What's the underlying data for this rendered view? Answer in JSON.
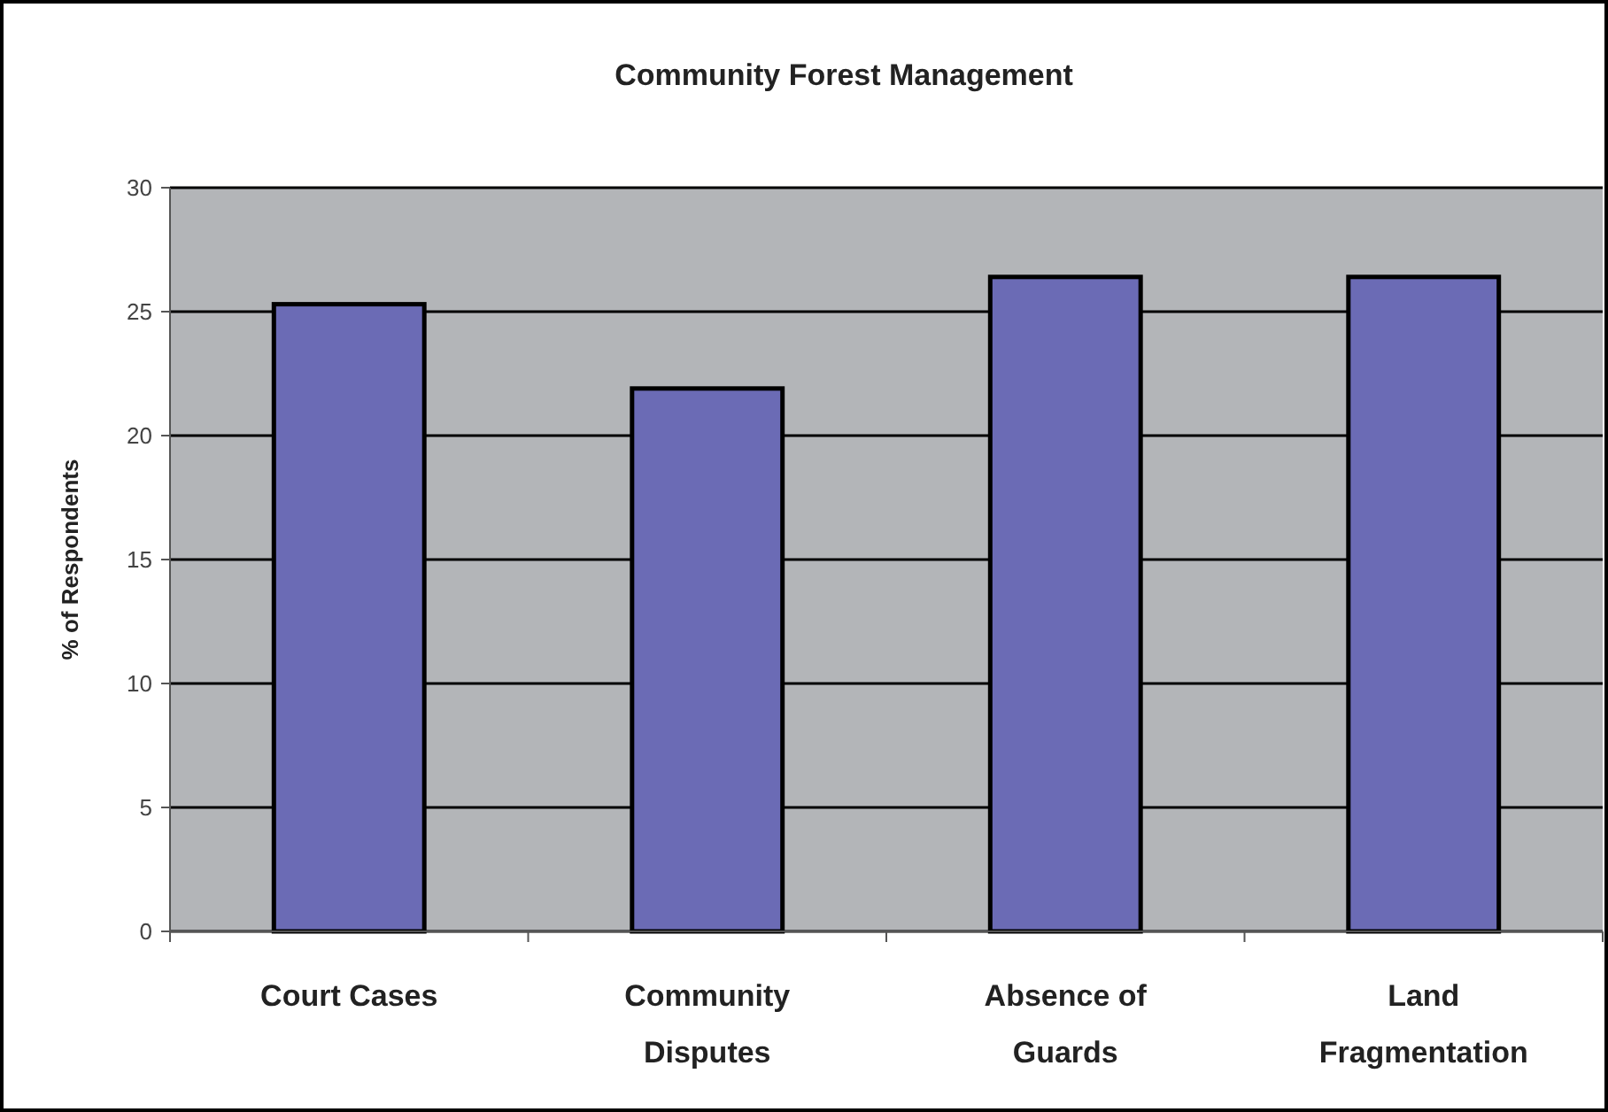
{
  "chart_data": {
    "type": "bar",
    "title": "Community Forest Management",
    "ylabel": "% of Respondents",
    "categories": [
      "Court Cases",
      "Community Disputes",
      "Absence of Guards",
      "Land Fragmentation"
    ],
    "values": [
      25.3,
      21.9,
      26.4,
      26.4
    ],
    "color": "#6b6bb5",
    "ylim": [
      0,
      30
    ],
    "yticks": [
      0,
      5,
      10,
      15,
      20,
      25,
      30
    ],
    "grid": "y"
  }
}
